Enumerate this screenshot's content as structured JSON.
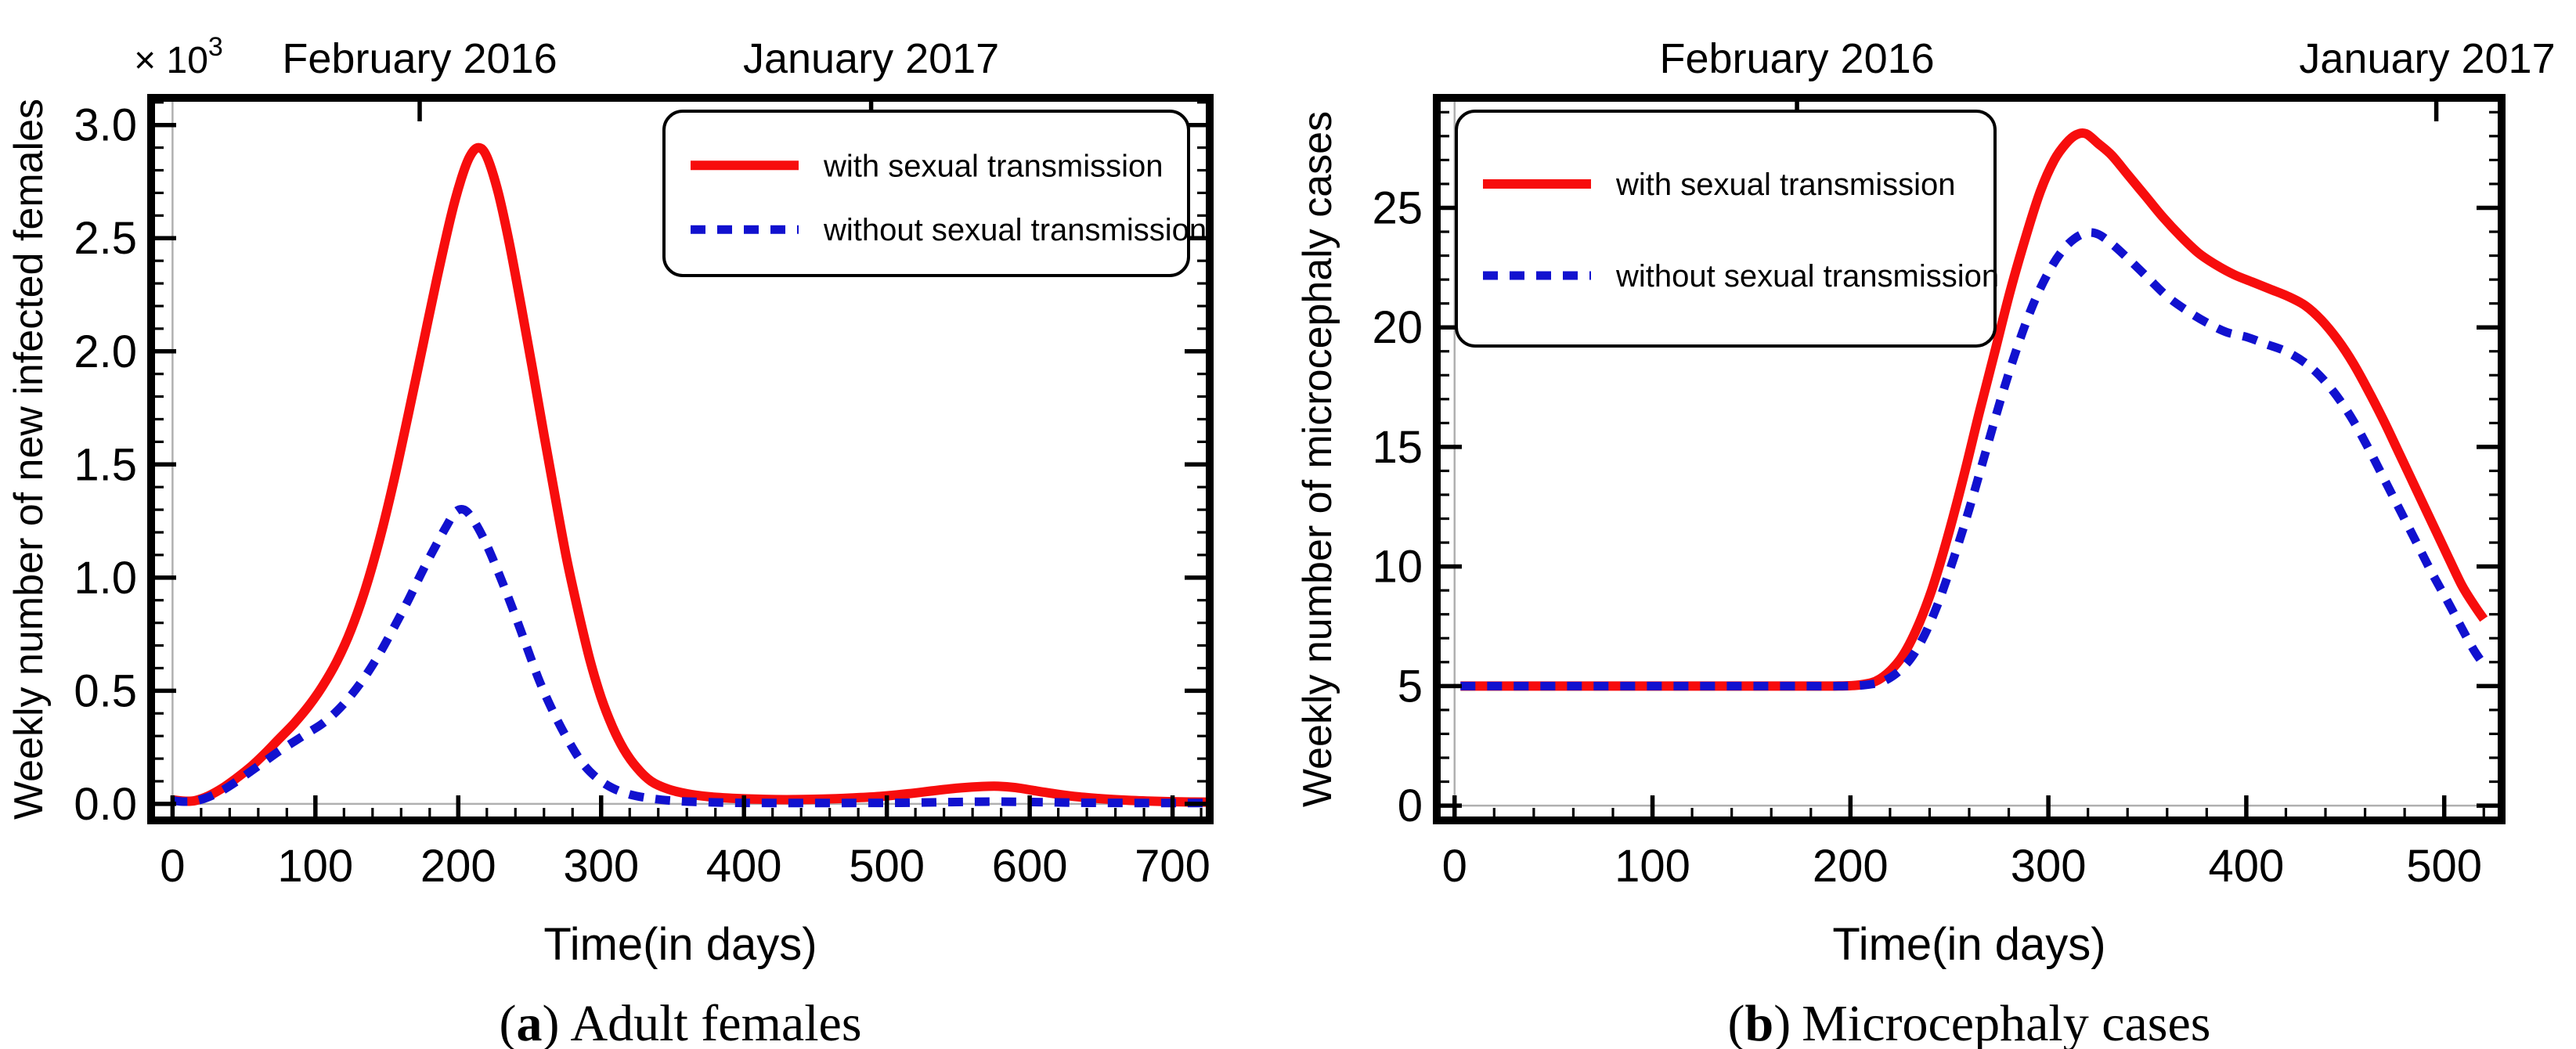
{
  "figure": {
    "background": "#ffffff",
    "captions": [
      {
        "prefix": "(",
        "letter": "a",
        "suffix": ")",
        "text": "Adult females"
      },
      {
        "prefix": "(",
        "letter": "b",
        "suffix": ")",
        "text": "Microcephaly cases"
      }
    ]
  },
  "colors": {
    "with_transmission": "#f70d0d",
    "without_transmission": "#1111cf",
    "frame": "#000000",
    "zero_line": "#b0b0b0"
  },
  "chart_data": [
    {
      "type": "line",
      "panel": "a",
      "caption": "Adult females",
      "xlabel": "Time(in days)",
      "ylabel": "Weekly number of new infected females",
      "y_axis_multiplier": {
        "symbol": "×",
        "base": "10",
        "exponent": "3"
      },
      "title_annotations": [
        {
          "text": "February 2016",
          "x": 173
        },
        {
          "text": "January 2017",
          "x": 489
        }
      ],
      "xlim": [
        -15,
        726
      ],
      "ylim": [
        -0.073,
        3.12
      ],
      "xticks": [
        0,
        100,
        200,
        300,
        400,
        500,
        600,
        700
      ],
      "yticks": [
        {
          "value": 0.0,
          "label": "0.0"
        },
        {
          "value": 0.5,
          "label": "0.5"
        },
        {
          "value": 1.0,
          "label": "1.0"
        },
        {
          "value": 1.5,
          "label": "1.5"
        },
        {
          "value": 2.0,
          "label": "2.0"
        },
        {
          "value": 2.5,
          "label": "2.5"
        },
        {
          "value": 3.0,
          "label": "3.0"
        }
      ],
      "minor_x_step": 20,
      "minor_y_step": 0.1,
      "zero_reference_lines": true,
      "legend": {
        "position": "top-right",
        "items": [
          {
            "label": "with sexual transmission",
            "style": "solid",
            "color": "#f70d0d"
          },
          {
            "label": "without sexual transmission",
            "style": "dashed",
            "color": "#1111cf"
          }
        ]
      },
      "series": [
        {
          "name": "with sexual transmission",
          "style": "solid",
          "color": "#f70d0d",
          "points": [
            [
              0,
              0.018
            ],
            [
              8,
              0.012
            ],
            [
              16,
              0.015
            ],
            [
              25,
              0.035
            ],
            [
              35,
              0.07
            ],
            [
              45,
              0.115
            ],
            [
              55,
              0.165
            ],
            [
              65,
              0.225
            ],
            [
              75,
              0.29
            ],
            [
              85,
              0.355
            ],
            [
              95,
              0.43
            ],
            [
              105,
              0.52
            ],
            [
              115,
              0.63
            ],
            [
              125,
              0.77
            ],
            [
              135,
              0.95
            ],
            [
              145,
              1.17
            ],
            [
              155,
              1.43
            ],
            [
              165,
              1.72
            ],
            [
              175,
              2.02
            ],
            [
              185,
              2.32
            ],
            [
              195,
              2.6
            ],
            [
              202,
              2.76
            ],
            [
              208,
              2.86
            ],
            [
              214,
              2.9
            ],
            [
              220,
              2.86
            ],
            [
              228,
              2.7
            ],
            [
              236,
              2.47
            ],
            [
              244,
              2.2
            ],
            [
              252,
              1.92
            ],
            [
              260,
              1.63
            ],
            [
              268,
              1.35
            ],
            [
              276,
              1.08
            ],
            [
              284,
              0.85
            ],
            [
              292,
              0.64
            ],
            [
              300,
              0.47
            ],
            [
              308,
              0.34
            ],
            [
              316,
              0.24
            ],
            [
              325,
              0.16
            ],
            [
              335,
              0.1
            ],
            [
              347,
              0.065
            ],
            [
              360,
              0.045
            ],
            [
              375,
              0.032
            ],
            [
              395,
              0.024
            ],
            [
              415,
              0.02
            ],
            [
              435,
              0.019
            ],
            [
              455,
              0.021
            ],
            [
              475,
              0.026
            ],
            [
              495,
              0.033
            ],
            [
              515,
              0.045
            ],
            [
              535,
              0.06
            ],
            [
              552,
              0.071
            ],
            [
              567,
              0.077
            ],
            [
              578,
              0.078
            ],
            [
              590,
              0.072
            ],
            [
              602,
              0.06
            ],
            [
              615,
              0.047
            ],
            [
              630,
              0.034
            ],
            [
              648,
              0.024
            ],
            [
              666,
              0.017
            ],
            [
              685,
              0.012
            ],
            [
              705,
              0.009
            ],
            [
              725,
              0.008
            ]
          ]
        },
        {
          "name": "without sexual transmission",
          "style": "dashed",
          "color": "#1111cf",
          "points": [
            [
              0,
              0.015
            ],
            [
              8,
              0.01
            ],
            [
              16,
              0.013
            ],
            [
              25,
              0.03
            ],
            [
              35,
              0.06
            ],
            [
              45,
              0.1
            ],
            [
              55,
              0.145
            ],
            [
              65,
              0.19
            ],
            [
              75,
              0.235
            ],
            [
              85,
              0.275
            ],
            [
              95,
              0.315
            ],
            [
              105,
              0.355
            ],
            [
              115,
              0.41
            ],
            [
              125,
              0.48
            ],
            [
              135,
              0.565
            ],
            [
              145,
              0.665
            ],
            [
              155,
              0.78
            ],
            [
              165,
              0.9
            ],
            [
              175,
              1.03
            ],
            [
              185,
              1.15
            ],
            [
              192,
              1.23
            ],
            [
              198,
              1.29
            ],
            [
              204,
              1.3
            ],
            [
              210,
              1.26
            ],
            [
              218,
              1.17
            ],
            [
              227,
              1.04
            ],
            [
              237,
              0.88
            ],
            [
              247,
              0.71
            ],
            [
              257,
              0.54
            ],
            [
              267,
              0.4
            ],
            [
              277,
              0.28
            ],
            [
              287,
              0.18
            ],
            [
              297,
              0.115
            ],
            [
              308,
              0.07
            ],
            [
              320,
              0.042
            ],
            [
              335,
              0.024
            ],
            [
              352,
              0.013
            ],
            [
              372,
              0.008
            ],
            [
              395,
              0.005
            ],
            [
              430,
              0.004
            ],
            [
              470,
              0.004
            ],
            [
              510,
              0.005
            ],
            [
              545,
              0.008
            ],
            [
              575,
              0.01
            ],
            [
              605,
              0.008
            ],
            [
              640,
              0.005
            ],
            [
              680,
              0.004
            ],
            [
              725,
              0.004
            ]
          ]
        }
      ]
    },
    {
      "type": "line",
      "panel": "b",
      "caption": "Microcephaly cases",
      "xlabel": "Time(in days)",
      "ylabel": "Weekly number of microcephaly cases",
      "y_axis_multiplier": null,
      "title_annotations": [
        {
          "text": "February 2016",
          "x": 173
        },
        {
          "text": "January 2017",
          "x": 496
        }
      ],
      "xlim": [
        -9,
        529
      ],
      "ylim": [
        -0.62,
        29.6
      ],
      "xticks": [
        0,
        100,
        200,
        300,
        400,
        500
      ],
      "yticks": [
        {
          "value": 0,
          "label": "0"
        },
        {
          "value": 5,
          "label": "5"
        },
        {
          "value": 10,
          "label": "10"
        },
        {
          "value": 15,
          "label": "15"
        },
        {
          "value": 20,
          "label": "20"
        },
        {
          "value": 25,
          "label": "25"
        }
      ],
      "minor_x_step": 20,
      "minor_y_step": 1,
      "zero_reference_lines": true,
      "legend": {
        "position": "top-left",
        "items": [
          {
            "label": "with sexual transmission",
            "style": "solid",
            "color": "#f70d0d"
          },
          {
            "label": "without sexual transmission",
            "style": "dashed",
            "color": "#1111cf"
          }
        ]
      },
      "series": [
        {
          "name": "with sexual transmission",
          "style": "solid",
          "color": "#f70d0d",
          "points": [
            [
              3,
              5
            ],
            [
              40,
              5
            ],
            [
              80,
              5
            ],
            [
              120,
              5
            ],
            [
              160,
              5
            ],
            [
              190,
              5
            ],
            [
              205,
              5.05
            ],
            [
              215,
              5.3
            ],
            [
              225,
              6.1
            ],
            [
              233,
              7.3
            ],
            [
              241,
              9
            ],
            [
              249,
              11.2
            ],
            [
              257,
              13.7
            ],
            [
              265,
              16.4
            ],
            [
              273,
              19
            ],
            [
              281,
              21.6
            ],
            [
              289,
              23.9
            ],
            [
              296,
              25.7
            ],
            [
              303,
              27
            ],
            [
              309,
              27.7
            ],
            [
              314,
              28.05
            ],
            [
              319,
              28.1
            ],
            [
              325,
              27.7
            ],
            [
              332,
              27.2
            ],
            [
              340,
              26.4
            ],
            [
              349,
              25.5
            ],
            [
              358,
              24.6
            ],
            [
              367,
              23.8
            ],
            [
              376,
              23.1
            ],
            [
              385,
              22.6
            ],
            [
              394,
              22.2
            ],
            [
              403,
              21.9
            ],
            [
              412,
              21.6
            ],
            [
              421,
              21.3
            ],
            [
              430,
              20.9
            ],
            [
              438,
              20.3
            ],
            [
              446,
              19.5
            ],
            [
              454,
              18.5
            ],
            [
              462,
              17.3
            ],
            [
              470,
              16
            ],
            [
              478,
              14.6
            ],
            [
              486,
              13.2
            ],
            [
              494,
              11.8
            ],
            [
              502,
              10.4
            ],
            [
              509,
              9.2
            ],
            [
              515,
              8.4
            ],
            [
              520,
              7.8
            ]
          ]
        },
        {
          "name": "without sexual transmission",
          "style": "dashed",
          "color": "#1111cf",
          "points": [
            [
              3,
              5
            ],
            [
              60,
              5
            ],
            [
              120,
              5
            ],
            [
              170,
              5
            ],
            [
              195,
              5
            ],
            [
              208,
              5.05
            ],
            [
              218,
              5.25
            ],
            [
              228,
              5.9
            ],
            [
              236,
              6.9
            ],
            [
              244,
              8.4
            ],
            [
              252,
              10.3
            ],
            [
              260,
              12.4
            ],
            [
              268,
              14.7
            ],
            [
              276,
              17
            ],
            [
              284,
              19.1
            ],
            [
              292,
              20.9
            ],
            [
              300,
              22.3
            ],
            [
              307,
              23.2
            ],
            [
              313,
              23.7
            ],
            [
              319,
              23.95
            ],
            [
              325,
              23.9
            ],
            [
              332,
              23.5
            ],
            [
              340,
              22.9
            ],
            [
              350,
              22.1
            ],
            [
              360,
              21.3
            ],
            [
              370,
              20.7
            ],
            [
              380,
              20.2
            ],
            [
              390,
              19.8
            ],
            [
              400,
              19.6
            ],
            [
              410,
              19.3
            ],
            [
              420,
              19
            ],
            [
              430,
              18.5
            ],
            [
              438,
              17.9
            ],
            [
              446,
              17.1
            ],
            [
              454,
              16.1
            ],
            [
              462,
              14.9
            ],
            [
              470,
              13.6
            ],
            [
              478,
              12.3
            ],
            [
              486,
              11
            ],
            [
              494,
              9.7
            ],
            [
              502,
              8.5
            ],
            [
              509,
              7.4
            ],
            [
              515,
              6.5
            ],
            [
              520,
              5.9
            ]
          ]
        }
      ]
    }
  ]
}
